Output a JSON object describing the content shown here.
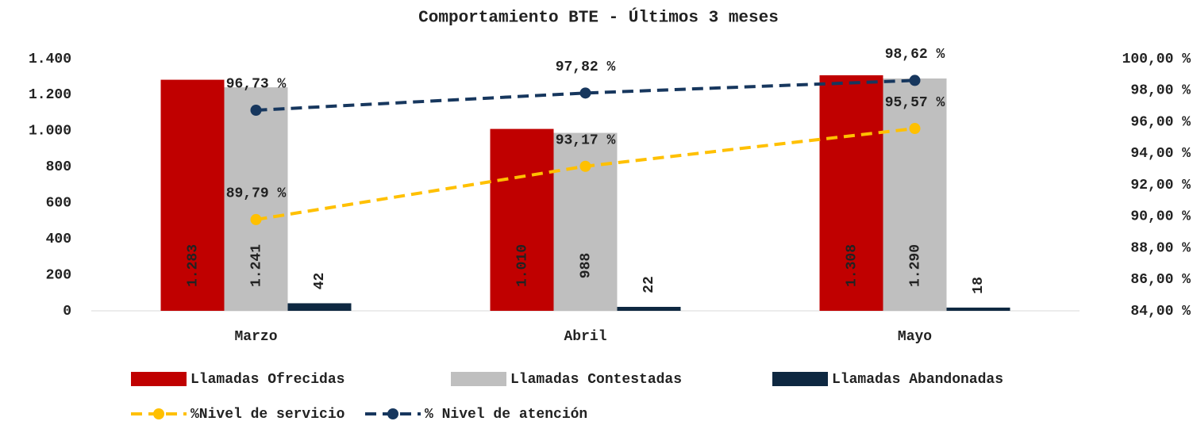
{
  "chart_data": {
    "type": "bar",
    "title": "Comportamiento BTE - Últimos 3 meses",
    "categories": [
      "Marzo",
      "Abril",
      "Mayo"
    ],
    "series": [
      {
        "name": "Llamadas Ofrecidas",
        "type": "bar",
        "color": "#c00000",
        "values": [
          1283,
          1010,
          1308
        ],
        "value_labels": [
          "1.283",
          "1.010",
          "1.308"
        ]
      },
      {
        "name": "Llamadas Contestadas",
        "type": "bar",
        "color": "#bfbfbf",
        "values": [
          1241,
          988,
          1290
        ],
        "value_labels": [
          "1.241",
          "988",
          "1.290"
        ]
      },
      {
        "name": "Llamadas Abandonadas",
        "type": "bar",
        "color": "#0e2841",
        "values": [
          42,
          22,
          18
        ]
      },
      {
        "name": "%Nivel de servicio",
        "type": "line",
        "axis": "y2",
        "color": "#ffc000",
        "values": [
          89.79,
          93.17,
          95.57
        ],
        "value_labels": [
          "89,79 %",
          "93,17 %",
          "95,57 %"
        ]
      },
      {
        "name": "% Nivel de atención",
        "type": "line",
        "axis": "y2",
        "color": "#17375e",
        "values": [
          96.73,
          97.82,
          98.62
        ],
        "value_labels": [
          "96,73 %",
          "97,82 %",
          "98,62 %"
        ]
      }
    ],
    "ylim": [
      0,
      1400
    ],
    "yticks": [
      0,
      200,
      400,
      600,
      800,
      {
        "value": 1000,
        "label": "1.000"
      },
      {
        "value": 1200,
        "label": "1.200"
      },
      {
        "value": 1400,
        "label": "1.400"
      }
    ],
    "y2lim": [
      84,
      100
    ],
    "y2ticks": [
      {
        "value": 84,
        "label": "84,00 %"
      },
      {
        "value": 86,
        "label": "86,00 %"
      },
      {
        "value": 88,
        "label": "88,00 %"
      },
      {
        "value": 90,
        "label": "90,00 %"
      },
      {
        "value": 92,
        "label": "92,00 %"
      },
      {
        "value": 94,
        "label": "94,00 %"
      },
      {
        "value": 96,
        "label": "96,00 %"
      },
      {
        "value": 98,
        "label": "98,00 %"
      },
      {
        "value": 100,
        "label": "100,00 %"
      }
    ],
    "grid": false,
    "legend": "bottom"
  }
}
